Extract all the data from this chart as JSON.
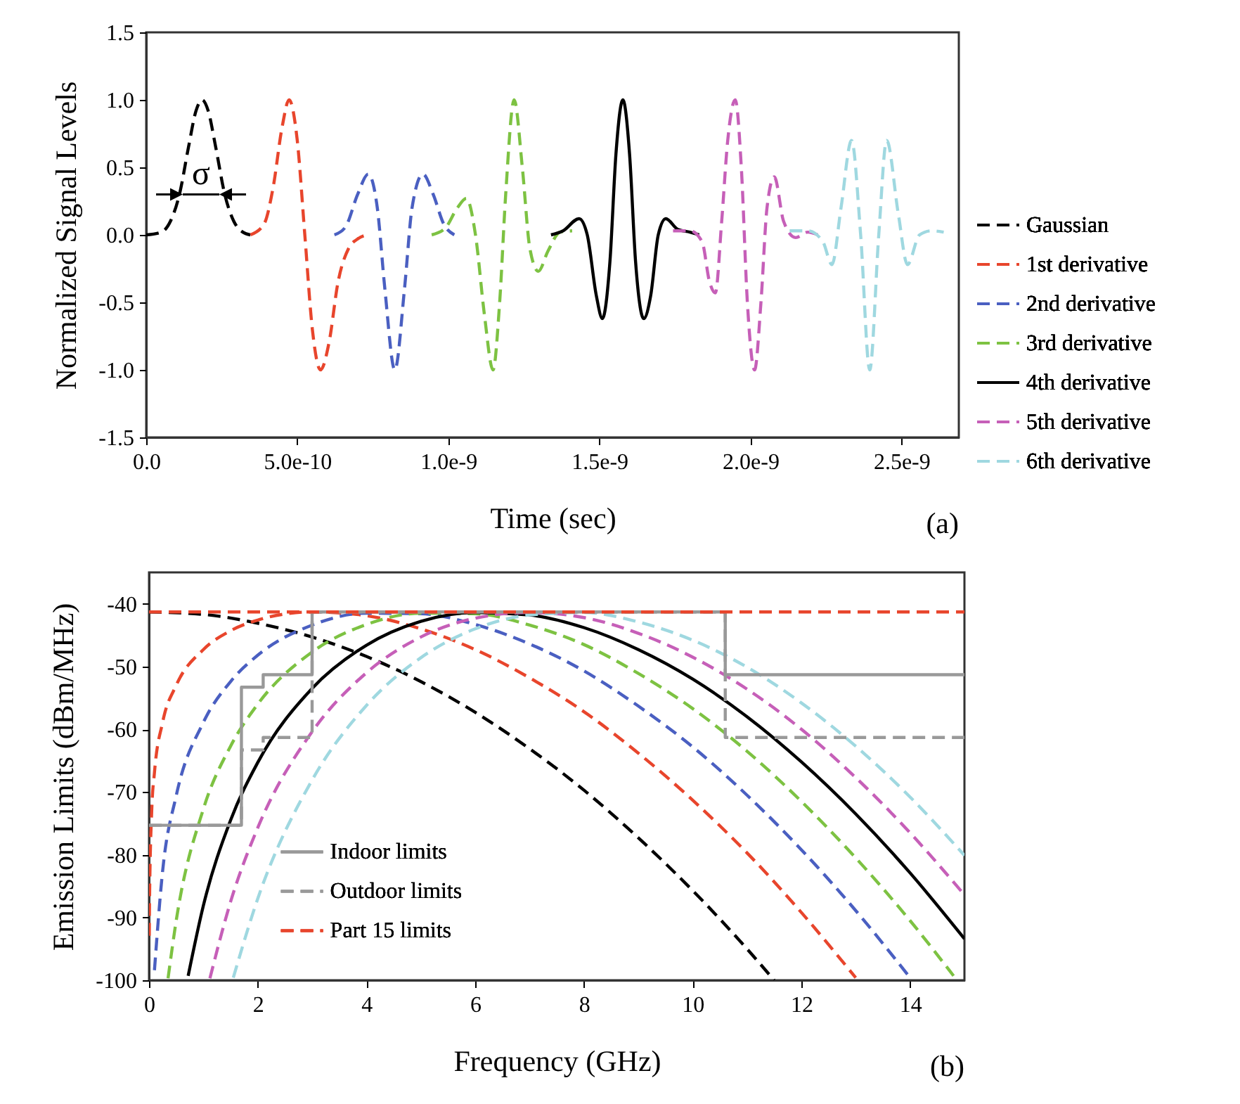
{
  "chart_data": [
    {
      "type": "line",
      "xlabel": "Time (sec)",
      "ylabel": "Normalized Signal Levels",
      "xlim": [
        0,
        2.69e-09
      ],
      "xticks": [
        {
          "value": 0,
          "label": "0.0"
        },
        {
          "value": 5e-10,
          "label": "5.0e-10"
        },
        {
          "value": 1e-09,
          "label": "1.0e-9"
        },
        {
          "value": 1.5e-09,
          "label": "1.5e-9"
        },
        {
          "value": 2e-09,
          "label": "2.0e-9"
        },
        {
          "value": 2.5e-09,
          "label": "2.5e-9"
        }
      ],
      "ylim": [
        -1.5,
        1.5
      ],
      "yticks": [
        -1.5,
        {
          "value": -1,
          "label": "-1.0"
        },
        -0.5,
        {
          "value": 0,
          "label": "0.0"
        },
        0.5,
        {
          "value": 1,
          "label": "1.0"
        },
        1.5
      ],
      "grid": false,
      "legend": "right",
      "series": [
        {
          "name": "Gaussian",
          "color": "#000000",
          "line_style": "dashed",
          "x": [
            0,
            5e-11,
            8e-11,
            1.1e-10,
            1.4e-10,
            1.65e-10,
            1.85e-10,
            2.05e-10,
            2.3e-10,
            2.6e-10,
            2.9e-10,
            3.2e-10,
            3.45e-10
          ],
          "values": [
            0,
            0.02,
            0.1,
            0.3,
            0.65,
            0.92,
            1.0,
            0.92,
            0.65,
            0.3,
            0.1,
            0.02,
            0
          ]
        },
        {
          "name": "1st derivative",
          "color": "#e8452c",
          "line_style": "dashed",
          "x": [
            3.45e-10,
            3.9e-10,
            4.2e-10,
            4.5e-10,
            4.73e-10,
            5e-10,
            5.25e-10,
            5.5e-10,
            5.77e-10,
            6.05e-10,
            6.35e-10,
            6.7e-10,
            7e-10,
            7.3e-10
          ],
          "values": [
            0,
            0.08,
            0.35,
            0.8,
            1.0,
            0.7,
            0,
            -0.7,
            -1.0,
            -0.8,
            -0.35,
            -0.1,
            -0.03,
            0
          ]
        },
        {
          "name": "2nd derivative",
          "color": "#4a5fc1",
          "line_style": "dashed",
          "x": [
            6.23e-10,
            6.6e-10,
            7e-10,
            7.35e-10,
            7.65e-10,
            7.9e-10,
            8.23e-10,
            8.55e-10,
            8.8e-10,
            9.16e-10,
            9.5e-10,
            9.85e-10,
            1.02e-09
          ],
          "values": [
            0,
            0.06,
            0.3,
            0.45,
            0.2,
            -0.4,
            -1.0,
            -0.4,
            0.2,
            0.45,
            0.3,
            0.08,
            0
          ]
        },
        {
          "name": "3rd derivative",
          "color": "#7dc242",
          "line_style": "dashed",
          "x": [
            9.45e-10,
            9.9e-10,
            1.03e-09,
            1.06e-09,
            1.09e-09,
            1.12e-09,
            1.148e-09,
            1.17e-09,
            1.19e-09,
            1.218e-09,
            1.245e-09,
            1.27e-09,
            1.298e-09,
            1.33e-09,
            1.37e-09,
            1.41e-09
          ],
          "values": [
            0,
            0.05,
            0.2,
            0.27,
            0,
            -0.6,
            -1.0,
            -0.5,
            0.3,
            1.0,
            0.5,
            -0.1,
            -0.27,
            -0.12,
            0.02,
            0.03
          ]
        },
        {
          "name": "4th derivative",
          "color": "#000000",
          "line_style": "solid",
          "x": [
            1.34e-09,
            1.38e-09,
            1.433e-09,
            1.46e-09,
            1.49e-09,
            1.51e-09,
            1.535e-09,
            1.555e-09,
            1.578e-09,
            1.6e-09,
            1.62e-09,
            1.647e-09,
            1.67e-09,
            1.695e-09,
            1.72e-09,
            1.76e-09,
            1.8e-09,
            1.83e-09
          ],
          "values": [
            0,
            0.03,
            0.12,
            0,
            -0.45,
            -0.62,
            -0.2,
            0.6,
            1.0,
            0.6,
            -0.2,
            -0.62,
            -0.45,
            0,
            0.12,
            0.04,
            0.02,
            0
          ]
        },
        {
          "name": "5th derivative",
          "color": "#c65fb8",
          "line_style": "dashed",
          "x": [
            1.744e-09,
            1.8e-09,
            1.84e-09,
            1.865e-09,
            1.884e-09,
            1.905e-09,
            1.925e-09,
            1.95e-09,
            1.97e-09,
            1.99e-09,
            2.014e-09,
            2.035e-09,
            2.055e-09,
            2.079e-09,
            2.11e-09,
            2.15e-09,
            2.19e-09,
            2.223e-09
          ],
          "values": [
            0.03,
            0.03,
            -0.05,
            -0.35,
            -0.43,
            0.1,
            0.7,
            1.0,
            0.5,
            -0.5,
            -1.0,
            -0.5,
            0.2,
            0.43,
            0.1,
            -0.02,
            0.02,
            0
          ]
        },
        {
          "name": "6th derivative",
          "color": "#9fd8e0",
          "line_style": "dashed",
          "x": [
            2.13e-09,
            2.19e-09,
            2.24e-09,
            2.27e-09,
            2.3e-09,
            2.335e-09,
            2.365e-09,
            2.395e-09,
            2.425e-09,
            2.451e-09,
            2.49e-09,
            2.52e-09,
            2.56e-09,
            2.6e-09,
            2.64e-09
          ],
          "values": [
            0.03,
            0.03,
            -0.05,
            -0.22,
            0.2,
            0.7,
            0,
            -1.0,
            0,
            0.7,
            0.15,
            -0.22,
            0,
            0.03,
            0.02
          ]
        }
      ],
      "annotations": [
        "σ",
        "(a)"
      ]
    },
    {
      "type": "line",
      "xlabel": "Frequency (GHz)",
      "ylabel": "Emission Limits (dBm/MHz)",
      "xlim": [
        0,
        15
      ],
      "xticks": [
        0,
        2,
        4,
        6,
        8,
        10,
        12,
        14
      ],
      "ylim": [
        -100,
        -35
      ],
      "yticks": [
        -40,
        -50,
        -60,
        -70,
        -80,
        -90,
        -100
      ],
      "grid": false,
      "legend": "bottom left",
      "series": [
        {
          "color": "#000000",
          "line_style": "dashed",
          "x": [
            0,
            1,
            2,
            3,
            4,
            5,
            6,
            7,
            8,
            9,
            10,
            11,
            11.5
          ],
          "values": [
            -41.3,
            -41.7,
            -43.1,
            -45.3,
            -48.4,
            -52.4,
            -57.3,
            -63.1,
            -69.7,
            -77.3,
            -85.7,
            -95.0,
            -100
          ]
        },
        {
          "color": "#e8452c",
          "line_style": "dashed",
          "x": [
            0.005,
            0.01,
            0.05,
            0.1,
            0.25,
            0.5,
            1,
            1.5,
            2,
            3,
            4,
            5,
            6,
            7,
            8,
            9,
            10,
            11,
            12,
            13
          ],
          "values": [
            -92.9,
            -86.9,
            -72.9,
            -66.9,
            -58.9,
            -53.0,
            -47.3,
            -44.3,
            -42.6,
            -41.3,
            -41.9,
            -44.0,
            -47.3,
            -51.8,
            -57.2,
            -63.8,
            -71.3,
            -79.7,
            -89.2,
            -99.6
          ]
        },
        {
          "color": "#4a5fc1",
          "line_style": "dashed",
          "x": [
            0.1,
            0.25,
            0.5,
            1,
            1.5,
            2,
            3,
            4,
            5,
            6,
            7,
            8,
            9,
            10,
            11,
            12,
            13,
            14
          ],
          "values": [
            -98.4,
            -82.6,
            -70.6,
            -58.9,
            -52.4,
            -48.2,
            -43.4,
            -41.5,
            -41.6,
            -43.3,
            -46.4,
            -50.7,
            -56.3,
            -62.8,
            -70.5,
            -79.2,
            -88.9,
            -99.6
          ]
        },
        {
          "color": "#7dc242",
          "line_style": "dashed",
          "x": [
            0.35,
            0.5,
            1,
            1.5,
            2,
            3,
            4,
            5,
            6,
            7,
            8,
            9,
            10,
            11,
            12,
            13,
            14,
            14.8
          ],
          "values": [
            -99.7,
            -90.5,
            -72.7,
            -62.7,
            -56.0,
            -47.7,
            -43.3,
            -41.5,
            -41.6,
            -43.4,
            -46.5,
            -51.1,
            -56.7,
            -63.5,
            -71.5,
            -80.5,
            -90.5,
            -99.3
          ]
        },
        {
          "color": "#000000",
          "line_style": "solid",
          "x": [
            0.72,
            1,
            1.5,
            2,
            3,
            4,
            5,
            6,
            7,
            8,
            9,
            10,
            11,
            12,
            13,
            14,
            15
          ],
          "values": [
            -99.3,
            -88.1,
            -74.5,
            -65.3,
            -53.5,
            -46.6,
            -42.8,
            -41.4,
            -41.8,
            -43.8,
            -47.3,
            -52.0,
            -58.0,
            -65.2,
            -73.5,
            -82.9,
            -93.4
          ]
        },
        {
          "color": "#c65fb8",
          "line_style": "dashed",
          "x": [
            1.12,
            1.5,
            2,
            3,
            4,
            5,
            6,
            7,
            8,
            9,
            10,
            11,
            12,
            13,
            14,
            15
          ],
          "values": [
            -99.7,
            -87.5,
            -75.7,
            -60.4,
            -51.0,
            -45.3,
            -42.3,
            -41.4,
            -42.2,
            -44.7,
            -48.5,
            -53.6,
            -60.0,
            -67.7,
            -76.5,
            -86.4
          ]
        },
        {
          "color": "#9fd8e0",
          "line_style": "dashed",
          "x": [
            1.55,
            2,
            3,
            4,
            5,
            6,
            7,
            8,
            9,
            10,
            11,
            12,
            13,
            14,
            15
          ],
          "values": [
            -99.6,
            -87.0,
            -68.1,
            -56.2,
            -48.6,
            -44.0,
            -41.8,
            -41.4,
            -42.9,
            -45.8,
            -50.1,
            -55.8,
            -62.7,
            -70.8,
            -80.1
          ]
        },
        {
          "name": "Indoor limits",
          "type": "step",
          "color": "#999999",
          "line_style": "solid",
          "x": [
            0,
            1.7,
            2.1,
            3.0,
            10.6,
            15
          ],
          "values": [
            -75.3,
            -53.3,
            -51.3,
            -41.3,
            -51.3,
            -51.3
          ]
        },
        {
          "name": "Outdoor limits",
          "type": "step",
          "color": "#999999",
          "line_style": "dashed",
          "x": [
            0,
            1.7,
            2.1,
            3.0,
            10.6,
            15
          ],
          "values": [
            -75.3,
            -63.3,
            -61.3,
            -41.3,
            -61.3,
            -61.3
          ]
        },
        {
          "name": "Part 15 limits",
          "type": "line",
          "color": "#e8452c",
          "line_style": "dashed",
          "x": [
            0,
            15
          ],
          "values": [
            -41.3,
            -41.3
          ]
        }
      ],
      "annotations": [
        "(b)"
      ]
    }
  ]
}
